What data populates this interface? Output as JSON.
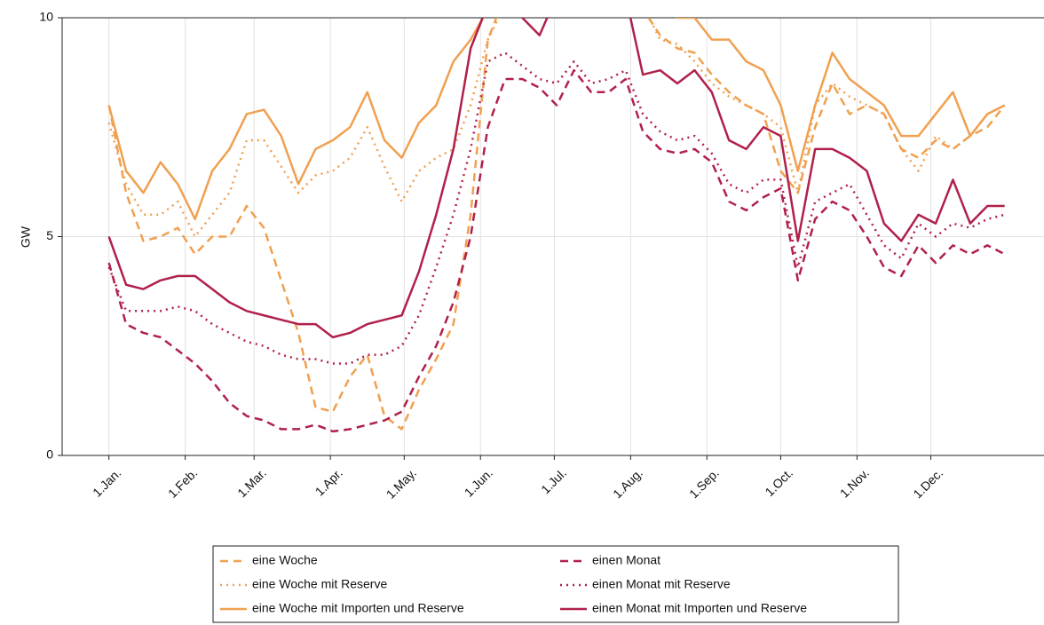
{
  "chart_data": {
    "type": "line",
    "y_label": "GW",
    "x": [
      0,
      7,
      14,
      21,
      28,
      35,
      42,
      49,
      56,
      63,
      70,
      77,
      84,
      91,
      98,
      105,
      112,
      119,
      126,
      133,
      140,
      147,
      154,
      161,
      168,
      175,
      182,
      189,
      196,
      203,
      210,
      217,
      224,
      231,
      238,
      245,
      252,
      259,
      266,
      273,
      280,
      287,
      294,
      301,
      308,
      315,
      322,
      329,
      336,
      343,
      350,
      357,
      364
    ],
    "xlim": [
      -19,
      380
    ],
    "xticks": [
      {
        "value": 0,
        "label": "1.Jan."
      },
      {
        "value": 31,
        "label": "1.Feb."
      },
      {
        "value": 59,
        "label": "1.Mar."
      },
      {
        "value": 90,
        "label": "1.Apr."
      },
      {
        "value": 120,
        "label": "1.May."
      },
      {
        "value": 151,
        "label": "1.Jun."
      },
      {
        "value": 181,
        "label": "1.Jul."
      },
      {
        "value": 212,
        "label": "1.Aug."
      },
      {
        "value": 243,
        "label": "1.Sep."
      },
      {
        "value": 273,
        "label": "1.Oct."
      },
      {
        "value": 304,
        "label": "1.Nov."
      },
      {
        "value": 334,
        "label": "1.Dec."
      }
    ],
    "ylim": [
      0,
      10
    ],
    "yticks": [
      0,
      5,
      10
    ],
    "grid": true,
    "legend": "bottom",
    "series": [
      {
        "name": "eine Woche",
        "color": "#f0a050",
        "style": "dashed",
        "values": [
          8.0,
          6.0,
          4.9,
          5.0,
          5.2,
          4.6,
          5.0,
          5.0,
          5.7,
          5.2,
          4.0,
          2.8,
          1.1,
          1.0,
          1.8,
          2.3,
          0.9,
          0.6,
          1.5,
          2.2,
          3.0,
          5.5,
          9.5,
          10.5,
          10.5,
          10.5,
          10.3,
          10.5,
          10.5,
          10.5,
          10.5,
          10.2,
          9.6,
          9.3,
          9.2,
          8.7,
          8.3,
          8.0,
          7.8,
          6.5,
          6.0,
          7.5,
          8.5,
          7.8,
          8.0,
          7.8,
          7.0,
          6.8,
          7.2,
          7.0,
          7.3,
          7.5,
          8.0
        ]
      },
      {
        "name": "eine Woche mit Reserve",
        "color": "#f0a050",
        "style": "dotted",
        "values": [
          7.6,
          6.2,
          5.5,
          5.5,
          5.8,
          5.0,
          5.5,
          6.0,
          7.2,
          7.2,
          6.6,
          6.0,
          6.4,
          6.5,
          6.8,
          7.5,
          6.6,
          5.8,
          6.5,
          6.8,
          7.0,
          8.0,
          9.5,
          10.3,
          10.5,
          10.5,
          10.5,
          10.5,
          10.5,
          10.5,
          10.5,
          10.3,
          9.5,
          9.4,
          9.0,
          8.5,
          8.2,
          8.0,
          7.8,
          7.5,
          6.0,
          8.0,
          8.5,
          8.2,
          8.0,
          7.8,
          7.0,
          6.5,
          7.3,
          7.0,
          7.3,
          7.8,
          8.0
        ]
      },
      {
        "name": "eine Woche mit Importen und Reserve",
        "color": "#f0a050",
        "style": "solid",
        "values": [
          8.0,
          6.5,
          6.0,
          6.7,
          6.2,
          5.4,
          6.5,
          7.0,
          7.8,
          7.9,
          7.3,
          6.2,
          7.0,
          7.2,
          7.5,
          8.3,
          7.2,
          6.8,
          7.6,
          8.0,
          9.0,
          9.5,
          10.2,
          10.5,
          10.5,
          10.5,
          10.5,
          10.5,
          10.5,
          10.5,
          10.5,
          10.5,
          10.3,
          10.0,
          10.0,
          9.5,
          9.5,
          9.0,
          8.8,
          8.0,
          6.5,
          8.0,
          9.2,
          8.6,
          8.3,
          8.0,
          7.3,
          7.3,
          7.8,
          8.3,
          7.3,
          7.8,
          8.0
        ]
      },
      {
        "name": "einen Monat",
        "color": "#b0204a",
        "style": "dashed",
        "values": [
          4.4,
          3.0,
          2.8,
          2.7,
          2.4,
          2.1,
          1.7,
          1.2,
          0.9,
          0.8,
          0.6,
          0.6,
          0.7,
          0.55,
          0.6,
          0.7,
          0.8,
          1.0,
          1.8,
          2.5,
          3.5,
          5.0,
          7.5,
          8.6,
          8.6,
          8.4,
          8.0,
          8.8,
          8.3,
          8.3,
          8.6,
          7.4,
          7.0,
          6.9,
          7.0,
          6.7,
          5.8,
          5.6,
          5.9,
          6.1,
          4.0,
          5.4,
          5.8,
          5.6,
          5.0,
          4.3,
          4.1,
          4.8,
          4.4,
          4.8,
          4.6,
          4.8,
          4.6
        ]
      },
      {
        "name": "einen Monat mit Reserve",
        "color": "#b0204a",
        "style": "dotted",
        "values": [
          4.3,
          3.3,
          3.3,
          3.3,
          3.4,
          3.3,
          3.0,
          2.8,
          2.6,
          2.5,
          2.3,
          2.2,
          2.2,
          2.1,
          2.1,
          2.3,
          2.3,
          2.5,
          3.2,
          4.3,
          5.5,
          7.0,
          9.0,
          9.2,
          8.9,
          8.6,
          8.5,
          9.0,
          8.5,
          8.6,
          8.8,
          7.8,
          7.4,
          7.2,
          7.3,
          6.9,
          6.2,
          6.0,
          6.3,
          6.3,
          4.3,
          5.8,
          6.0,
          6.2,
          5.5,
          4.8,
          4.5,
          5.3,
          5.0,
          5.3,
          5.2,
          5.4,
          5.5
        ]
      },
      {
        "name": "einen Monat mit Importen und Reserve",
        "color": "#b0204a",
        "style": "solid",
        "values": [
          5.0,
          3.9,
          3.8,
          4.0,
          4.1,
          4.1,
          3.8,
          3.5,
          3.3,
          3.2,
          3.1,
          3.0,
          3.0,
          2.7,
          2.8,
          3.0,
          3.1,
          3.2,
          4.2,
          5.5,
          7.0,
          9.3,
          10.3,
          10.5,
          10.0,
          9.6,
          10.5,
          10.5,
          10.3,
          10.5,
          10.5,
          8.7,
          8.8,
          8.5,
          8.8,
          8.3,
          7.2,
          7.0,
          7.5,
          7.3,
          4.9,
          7.0,
          7.0,
          6.8,
          6.5,
          5.3,
          4.9,
          5.5,
          5.3,
          6.3,
          5.3,
          5.7,
          5.7
        ]
      }
    ]
  }
}
